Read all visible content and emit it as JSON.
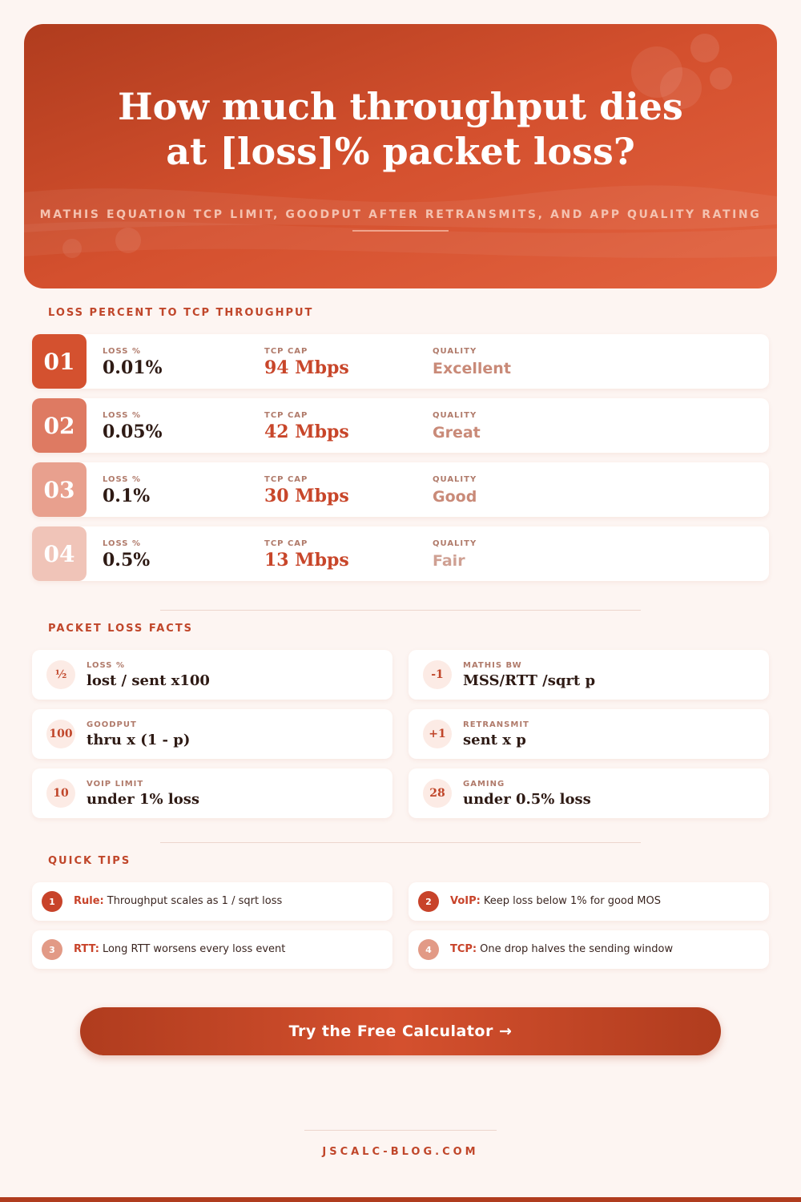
{
  "header": {
    "title_line1": "How much throughput dies",
    "title_line2": "at [loss]% packet loss?",
    "subtitle": "MATHIS EQUATION TCP LIMIT, GOODPUT AFTER RETRANSMITS, AND APP QUALITY RATING"
  },
  "table": {
    "heading": "LOSS PERCENT TO TCP THROUGHPUT",
    "rows": [
      {
        "index": "01",
        "loss_label": "LOSS %",
        "loss": "0.01%",
        "cap_label": "TCP CAP",
        "cap": "94 Mbps",
        "quality_label": "QUALITY",
        "quality": "Excellent"
      },
      {
        "index": "02",
        "loss_label": "LOSS %",
        "loss": "0.05%",
        "cap_label": "TCP CAP",
        "cap": "42 Mbps",
        "quality_label": "QUALITY",
        "quality": "Great"
      },
      {
        "index": "03",
        "loss_label": "LOSS %",
        "loss": "0.1%",
        "cap_label": "TCP CAP",
        "cap": "30 Mbps",
        "quality_label": "QUALITY",
        "quality": "Good"
      },
      {
        "index": "04",
        "loss_label": "LOSS %",
        "loss": "0.5%",
        "cap_label": "TCP CAP",
        "cap": "13 Mbps",
        "quality_label": "QUALITY",
        "quality": "Fair"
      }
    ]
  },
  "facts": {
    "heading": "PACKET LOSS FACTS",
    "items": [
      {
        "icon": "½",
        "label": "LOSS %",
        "text": "lost / sent x100"
      },
      {
        "icon": "-1",
        "label": "MATHIS BW",
        "text": "MSS/RTT /sqrt p"
      },
      {
        "icon": "100",
        "label": "GOODPUT",
        "text": "thru x (1 - p)"
      },
      {
        "icon": "+1",
        "label": "RETRANSMIT",
        "text": "sent x p"
      },
      {
        "icon": "10",
        "label": "VOIP LIMIT",
        "text": "under 1% loss"
      },
      {
        "icon": "28",
        "label": "GAMING",
        "text": "under 0.5% loss"
      }
    ]
  },
  "tips": {
    "heading": "QUICK TIPS",
    "items": [
      {
        "number": "1",
        "key": "Rule:",
        "text": "Throughput scales as 1 / sqrt loss"
      },
      {
        "number": "2",
        "key": "VoIP:",
        "text": "Keep loss below 1% for good MOS"
      },
      {
        "number": "3",
        "key": "RTT:",
        "text": "Long RTT worsens every loss event"
      },
      {
        "number": "4",
        "key": "TCP:",
        "text": "One drop halves the sending window"
      }
    ]
  },
  "cta": "Try the Free Calculator →",
  "footer": "JSCALC-BLOG.COM"
}
